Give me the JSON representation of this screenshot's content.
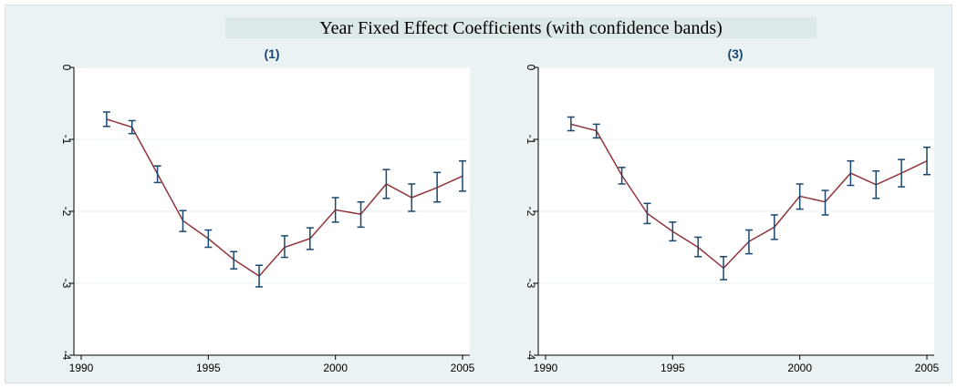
{
  "figure": {
    "title": "Year Fixed Effect Coefficients (with confidence bands)"
  },
  "colors": {
    "background": "#eaf2f3",
    "plot_area": "#ffffff",
    "grid": "#eaf2f3",
    "line": "#90353b",
    "error_bar": "#1a476f",
    "panel_title": "#1a476f"
  },
  "chart_data": [
    {
      "type": "line",
      "title": "(1)",
      "xlabel": "",
      "ylabel": "",
      "xlim": [
        1990,
        2005
      ],
      "ylim": [
        -4,
        0
      ],
      "xticks": [
        1990,
        1995,
        2000,
        2005
      ],
      "yticks": [
        0,
        -1,
        -2,
        -3,
        -4
      ],
      "grid": true,
      "series": [
        {
          "x": [
            1991,
            1992,
            1993,
            1994,
            1995,
            1996,
            1997,
            1998,
            1999,
            2000,
            2001,
            2002,
            2003,
            2004,
            2005
          ],
          "y": [
            -0.72,
            -0.83,
            -1.48,
            -2.13,
            -2.38,
            -2.67,
            -2.9,
            -2.5,
            -2.38,
            -1.98,
            -2.04,
            -1.62,
            -1.81,
            -1.67,
            -1.51
          ],
          "lower": [
            -0.82,
            -0.92,
            -1.6,
            -2.28,
            -2.5,
            -2.8,
            -3.05,
            -2.64,
            -2.53,
            -2.15,
            -2.22,
            -1.82,
            -2.0,
            -1.87,
            -1.72
          ],
          "upper": [
            -0.62,
            -0.74,
            -1.37,
            -1.99,
            -2.26,
            -2.56,
            -2.75,
            -2.34,
            -2.23,
            -1.81,
            -1.87,
            -1.42,
            -1.62,
            -1.46,
            -1.3
          ]
        }
      ]
    },
    {
      "type": "line",
      "title": "(3)",
      "xlabel": "",
      "ylabel": "",
      "xlim": [
        1990,
        2005
      ],
      "ylim": [
        -4,
        0
      ],
      "xticks": [
        1990,
        1995,
        2000,
        2005
      ],
      "yticks": [
        0,
        -1,
        -2,
        -3,
        -4
      ],
      "grid": true,
      "series": [
        {
          "x": [
            1991,
            1992,
            1993,
            1994,
            1995,
            1996,
            1997,
            1998,
            1999,
            2000,
            2001,
            2002,
            2003,
            2004,
            2005
          ],
          "y": [
            -0.79,
            -0.88,
            -1.5,
            -2.03,
            -2.28,
            -2.5,
            -2.79,
            -2.42,
            -2.22,
            -1.79,
            -1.87,
            -1.47,
            -1.63,
            -1.47,
            -1.3
          ],
          "lower": [
            -0.88,
            -0.98,
            -1.62,
            -2.17,
            -2.41,
            -2.63,
            -2.95,
            -2.59,
            -2.39,
            -1.97,
            -2.05,
            -1.64,
            -1.82,
            -1.66,
            -1.49
          ],
          "upper": [
            -0.69,
            -0.79,
            -1.39,
            -1.89,
            -2.15,
            -2.36,
            -2.63,
            -2.26,
            -2.05,
            -1.62,
            -1.71,
            -1.3,
            -1.44,
            -1.28,
            -1.11
          ]
        }
      ]
    }
  ]
}
